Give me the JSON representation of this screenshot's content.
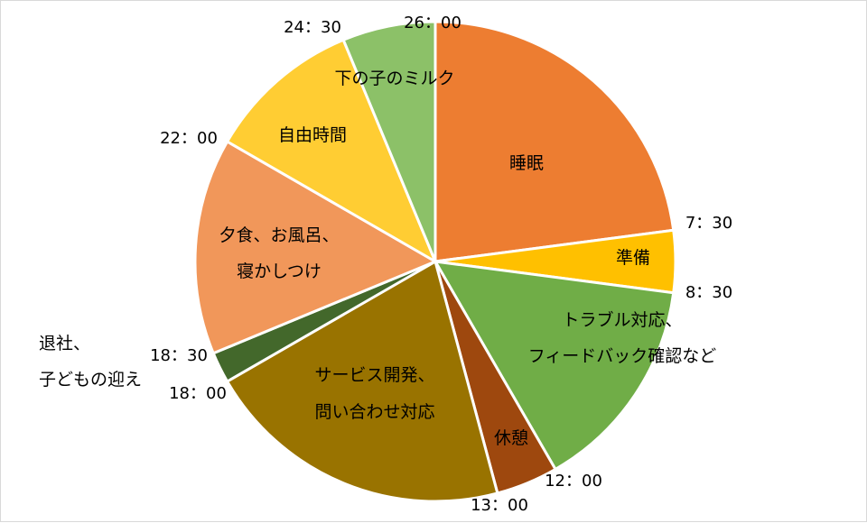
{
  "chart_data": {
    "type": "pie",
    "title": "",
    "start_angle_deg": 0,
    "direction": "clockwise",
    "unit": "hours",
    "slices": [
      {
        "label": "睡眠",
        "start": "26：00",
        "end": "7：30",
        "hours": 5.5,
        "color": "#ED7D31"
      },
      {
        "label": "準備",
        "start": "7：30",
        "end": "8：30",
        "hours": 1.0,
        "color": "#FFC000"
      },
      {
        "label": "トラブル対応、\nフィードバック確認など",
        "start": "8：30",
        "end": "12：00",
        "hours": 3.5,
        "color": "#70AD47"
      },
      {
        "label": "休憩",
        "start": "12：00",
        "end": "13：00",
        "hours": 1.0,
        "color": "#9E480E"
      },
      {
        "label": "サービス開発、\n問い合わせ対応",
        "start": "13：00",
        "end": "18：00",
        "hours": 5.0,
        "color": "#997300"
      },
      {
        "label": "退社、\n子どもの迎え",
        "start": "18：00",
        "end": "18：30",
        "hours": 0.5,
        "color": "#43682B"
      },
      {
        "label": "夕食、お風呂、\n寝かしつけ",
        "start": "18：30",
        "end": "22：00",
        "hours": 3.5,
        "color": "#F1975A"
      },
      {
        "label": "自由時間",
        "start": "22：00",
        "end": "24：30",
        "hours": 2.5,
        "color": "#FFCD33"
      },
      {
        "label": "下の子のミルク",
        "start": "24：30",
        "end": "26：00",
        "hours": 1.5,
        "color": "#8CC168"
      }
    ],
    "boundary_labels": [
      "26：00",
      "7：30",
      "8：30",
      "12：00",
      "13：00",
      "18：00",
      "18：30",
      "22：00",
      "24：30"
    ]
  }
}
